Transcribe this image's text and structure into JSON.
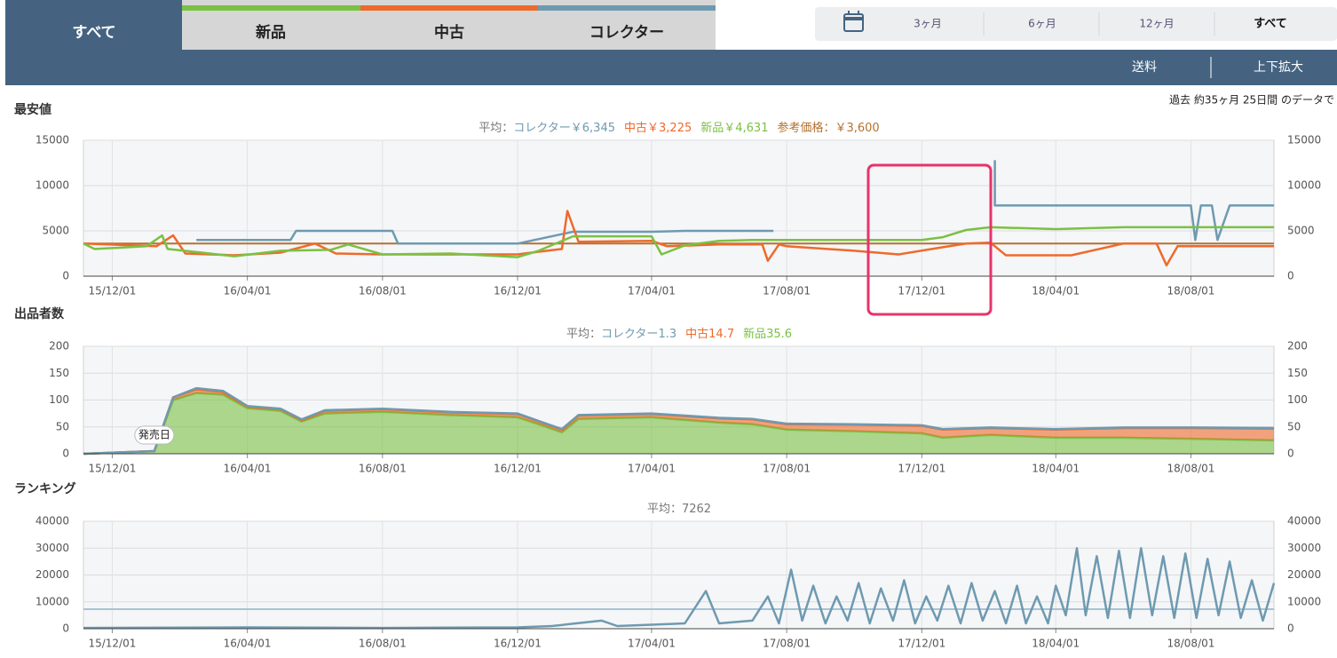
{
  "tabs": [
    "すべて",
    "新品",
    "中古",
    "コレクター"
  ],
  "ranges": [
    "3ヶ月",
    "6ヶ月",
    "12ヶ月",
    "すべて"
  ],
  "toolbar": [
    "送料",
    "上下拡大"
  ],
  "note": "過去 約35ヶ月 25日間 のデータで",
  "chart_data": [
    {
      "type": "line",
      "title": "最安値",
      "avg_label": "平均：",
      "xlim": [
        "15/11/05",
        "18/10/15"
      ],
      "xticks": [
        "15/12/01",
        "16/04/01",
        "16/08/01",
        "16/12/01",
        "17/04/01",
        "17/08/01",
        "17/12/01",
        "18/04/01",
        "18/08/01"
      ],
      "ylim": [
        0,
        15000
      ],
      "yticks": [
        0,
        5000,
        10000,
        15000
      ],
      "grid": true,
      "series": [
        {
          "name": "コレクター",
          "color": "#6e9ab0",
          "average": "￥6,345",
          "x": [
            "16/02/15",
            "16/05/10",
            "16/05/15",
            "16/08/10",
            "16/08/15",
            "16/12/01",
            "17/01/20",
            "17/04/01",
            "17/05/01",
            "17/07/20",
            null,
            "18/02/05",
            "18/02/05",
            "18/08/01",
            "18/08/05",
            "18/08/10",
            "18/08/20",
            "18/08/25",
            "18/09/05",
            "18/10/15"
          ],
          "values": [
            4000,
            4000,
            5000,
            5000,
            3600,
            3600,
            4900,
            4900,
            5000,
            5000,
            null,
            12800,
            7800,
            7800,
            4000,
            7800,
            7800,
            4000,
            7800,
            7800
          ]
        },
        {
          "name": "中古",
          "color": "#ee6a2b",
          "average": "￥3,225",
          "x": [
            "15/11/05",
            "16/01/10",
            "16/01/25",
            "16/02/05",
            "16/03/20",
            "16/05/01",
            "16/06/01",
            "16/06/20",
            "16/08/01",
            "16/12/01",
            "16/12/20",
            "17/01/10",
            "17/01/15",
            "17/01/25",
            "17/04/01",
            "17/04/15",
            "17/06/01",
            "17/07/10",
            "17/07/15",
            "17/07/25",
            "17/08/01",
            "17/10/01",
            "17/11/10",
            "17/12/20",
            "18/01/10",
            "18/02/01",
            "18/02/15",
            "18/04/15",
            "18/06/01",
            "18/07/01",
            "18/07/10",
            "18/07/20",
            "18/10/15"
          ],
          "values": [
            3600,
            3300,
            4500,
            2500,
            2300,
            2600,
            3600,
            2500,
            2400,
            2400,
            2700,
            3000,
            7200,
            3800,
            3900,
            3300,
            3500,
            3500,
            1700,
            3500,
            3300,
            2800,
            2400,
            3200,
            3600,
            3700,
            2300,
            2300,
            3600,
            3600,
            1200,
            3300,
            3300
          ]
        },
        {
          "name": "新品",
          "color": "#7ac143",
          "average": "￥4,631",
          "x": [
            "15/11/05",
            "15/11/15",
            "16/01/01",
            "16/01/15",
            "16/01/20",
            "16/02/20",
            "16/03/20",
            "16/05/01",
            "16/06/15",
            "16/07/01",
            "16/08/01",
            "16/10/01",
            "16/12/01",
            "16/12/20",
            "17/01/20",
            "17/04/01",
            "17/04/10",
            "17/05/01",
            "17/06/01",
            "17/07/01",
            "17/08/01",
            "17/12/01",
            "17/12/20",
            "18/01/10",
            "18/02/01",
            "18/04/01",
            "18/06/01",
            "18/10/15"
          ],
          "values": [
            3600,
            3000,
            3300,
            4500,
            3000,
            2600,
            2200,
            2800,
            2900,
            3500,
            2400,
            2500,
            2100,
            2800,
            4400,
            4400,
            2400,
            3400,
            3900,
            4000,
            4000,
            4000,
            4300,
            5100,
            5400,
            5200,
            5400,
            5400
          ]
        }
      ],
      "reference": {
        "label": "参考価格：",
        "value": 3600,
        "value_label": "￥3,600",
        "color": "#b5712e"
      }
    },
    {
      "type": "area",
      "title": "出品者数",
      "avg_label": "平均：",
      "xlim": [
        "15/11/05",
        "18/10/15"
      ],
      "xticks": [
        "15/12/01",
        "16/04/01",
        "16/08/01",
        "16/12/01",
        "17/04/01",
        "17/08/01",
        "17/12/01",
        "18/04/01",
        "18/08/01"
      ],
      "ylim": [
        0,
        200
      ],
      "yticks": [
        0,
        50,
        100,
        150,
        200
      ],
      "grid": true,
      "stacked": true,
      "x": [
        "15/11/05",
        "16/01/08",
        "16/01/25",
        "16/02/15",
        "16/03/10",
        "16/04/01",
        "16/05/01",
        "16/05/20",
        "16/06/10",
        "16/08/01",
        "16/10/01",
        "16/12/01",
        "16/12/20",
        "17/01/10",
        "17/01/25",
        "17/04/01",
        "17/06/01",
        "17/07/01",
        "17/08/01",
        "17/10/01",
        "17/12/01",
        "17/12/20",
        "18/02/01",
        "18/04/01",
        "18/06/01",
        "18/08/01",
        "18/10/15"
      ],
      "series": [
        {
          "name": "コレクター",
          "color": "#6e9ab0",
          "average": 1.3,
          "values": [
            0,
            0,
            0,
            2,
            2,
            1,
            1,
            1,
            1,
            1,
            1,
            1,
            1,
            1,
            1,
            1,
            1,
            1,
            1,
            1,
            1,
            1,
            1,
            1,
            1,
            1,
            1
          ]
        },
        {
          "name": "中古",
          "color": "#ee6a2b",
          "average": 14.7,
          "values": [
            0,
            0,
            5,
            7,
            5,
            3,
            3,
            3,
            5,
            5,
            5,
            6,
            5,
            5,
            6,
            6,
            8,
            9,
            10,
            12,
            14,
            15,
            13,
            15,
            18,
            20,
            22
          ]
        },
        {
          "name": "新品",
          "color": "#7ac143",
          "average": 35.6,
          "values": [
            0,
            5,
            100,
            113,
            110,
            85,
            80,
            60,
            75,
            78,
            72,
            68,
            55,
            40,
            65,
            68,
            58,
            55,
            45,
            42,
            38,
            30,
            35,
            30,
            30,
            28,
            25
          ]
        }
      ],
      "annotations": [
        {
          "text": "発売日",
          "x": "16/01/08"
        }
      ]
    },
    {
      "type": "line",
      "title": "ランキング",
      "avg_label": "平均：",
      "average": 7262,
      "average_color": "#aac3d3",
      "xlim": [
        "15/11/05",
        "18/10/15"
      ],
      "xticks": [
        "15/12/01",
        "16/04/01",
        "16/08/01",
        "16/12/01",
        "17/04/01",
        "17/08/01",
        "17/12/01",
        "18/04/01",
        "18/08/01"
      ],
      "ylim": [
        0,
        40000
      ],
      "yticks": [
        0,
        10000,
        20000,
        30000,
        40000
      ],
      "grid": true,
      "series": [
        {
          "color": "#6e9ab0",
          "x": [
            "15/11/05",
            "16/04/01",
            "16/08/01",
            "16/12/01",
            "17/01/01",
            "17/02/15",
            "17/03/01",
            "17/04/01",
            "17/05/01",
            "17/05/20",
            "17/06/01",
            "17/07/01",
            "17/07/15",
            "17/07/25",
            "17/08/05",
            "17/08/15",
            "17/08/25",
            "17/09/05",
            "17/09/15",
            "17/09/25",
            "17/10/05",
            "17/10/15",
            "17/10/25",
            "17/11/05",
            "17/11/15",
            "17/11/25",
            "17/12/05",
            "17/12/15",
            "17/12/25",
            "18/01/05",
            "18/01/15",
            "18/01/25",
            "18/02/05",
            "18/02/15",
            "18/02/25",
            "18/03/05",
            "18/03/15",
            "18/03/25",
            "18/04/01",
            "18/04/10",
            "18/04/20",
            "18/04/28",
            "18/05/08",
            "18/05/18",
            "18/05/28",
            "18/06/07",
            "18/06/17",
            "18/06/27",
            "18/07/07",
            "18/07/17",
            "18/07/27",
            "18/08/06",
            "18/08/16",
            "18/08/26",
            "18/09/05",
            "18/09/15",
            "18/09/25",
            "18/10/05",
            "18/10/15"
          ],
          "values": [
            300,
            500,
            300,
            500,
            1000,
            3000,
            1000,
            1500,
            2000,
            14000,
            2000,
            3000,
            12000,
            2000,
            22000,
            3000,
            16000,
            2000,
            12000,
            3000,
            17000,
            2000,
            15000,
            3000,
            18000,
            2000,
            12000,
            3000,
            16000,
            2000,
            17000,
            3000,
            14000,
            2000,
            16000,
            2000,
            12000,
            2000,
            16000,
            5000,
            30000,
            5000,
            27000,
            4000,
            29000,
            4000,
            30000,
            5000,
            27000,
            4000,
            28000,
            4000,
            26000,
            5000,
            25000,
            4000,
            18000,
            3000,
            17000
          ]
        }
      ]
    }
  ]
}
